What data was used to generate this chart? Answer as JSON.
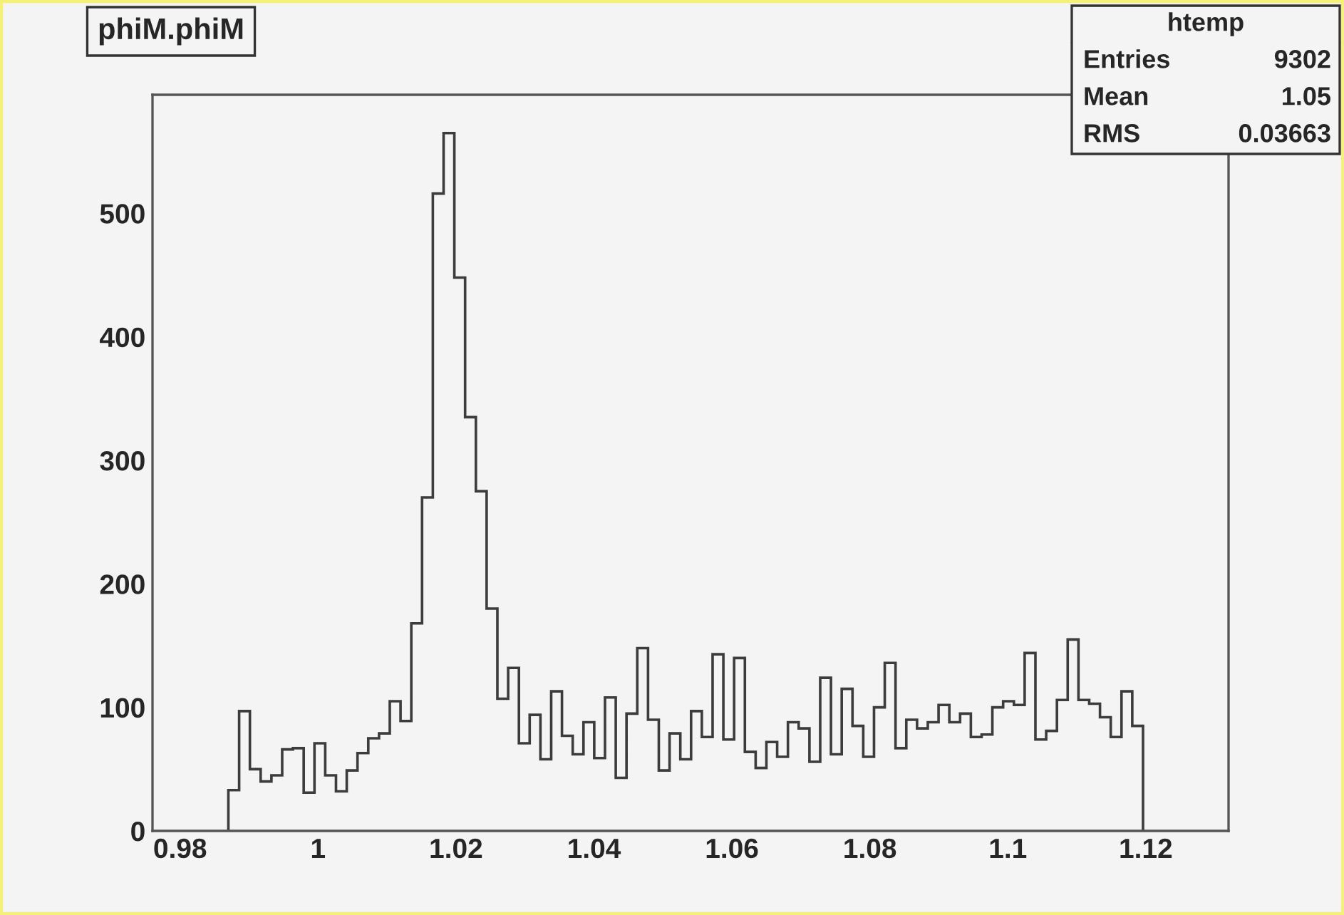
{
  "chart_data": {
    "type": "histogram",
    "title": "phiM.phiM",
    "bins": [
      0.987,
      0.98856,
      0.99012,
      0.99168,
      0.99324,
      0.9948,
      0.99636,
      0.99792,
      0.99948,
      1.00104,
      1.0026,
      1.00416,
      1.00572,
      1.00728,
      1.00884,
      1.0104,
      1.01196,
      1.01352,
      1.01508,
      1.01664,
      1.0182,
      1.01976,
      1.02132,
      1.02288,
      1.02444,
      1.026,
      1.02756,
      1.02912,
      1.03068,
      1.03224,
      1.0338,
      1.03536,
      1.03692,
      1.03848,
      1.04004,
      1.0416,
      1.04316,
      1.04472,
      1.04628,
      1.04784,
      1.0494,
      1.05096,
      1.05252,
      1.05408,
      1.05564,
      1.0572,
      1.05876,
      1.06032,
      1.06188,
      1.06344,
      1.065,
      1.06656,
      1.06812,
      1.06968,
      1.07124,
      1.0728,
      1.07436,
      1.07592,
      1.07748,
      1.07904,
      1.0806,
      1.08216,
      1.08372,
      1.08528,
      1.08684,
      1.0884,
      1.08996,
      1.09152,
      1.09308,
      1.09464,
      1.0962,
      1.09776,
      1.09932,
      1.10088,
      1.10244,
      1.104,
      1.10556,
      1.10712,
      1.10868,
      1.11024,
      1.1118,
      1.11336,
      1.11492,
      1.11648,
      1.11804,
      1.1196
    ],
    "values": [
      33,
      97,
      50,
      40,
      45,
      66,
      67,
      31,
      71,
      45,
      32,
      49,
      63,
      75,
      79,
      105,
      89,
      168,
      270,
      516,
      565,
      448,
      335,
      275,
      180,
      107,
      132,
      71,
      94,
      58,
      113,
      77,
      62,
      88,
      59,
      108,
      43,
      95,
      148,
      90,
      49,
      79,
      58,
      97,
      76,
      143,
      74,
      140,
      64,
      51,
      72,
      60,
      88,
      83,
      56,
      124,
      62,
      115,
      85,
      60,
      100,
      136,
      67,
      90,
      83,
      88,
      102,
      88,
      95,
      76,
      78,
      100,
      105,
      102,
      144,
      74,
      81,
      106,
      155,
      106,
      103,
      92,
      76,
      113,
      85
    ],
    "color": "#3c3c3c",
    "xlim": [
      0.976,
      1.132
    ],
    "xticks": [
      {
        "value": 0.98,
        "label": "0.98"
      },
      {
        "value": 1.0,
        "label": "1"
      },
      {
        "value": 1.02,
        "label": "1.02"
      },
      {
        "value": 1.04,
        "label": "1.04"
      },
      {
        "value": 1.06,
        "label": "1.06"
      },
      {
        "value": 1.08,
        "label": "1.08"
      },
      {
        "value": 1.1,
        "label": "1.1"
      },
      {
        "value": 1.12,
        "label": "1.12"
      }
    ],
    "ylim": [
      0,
      596
    ],
    "yticks": [
      0,
      100,
      200,
      300,
      400,
      500
    ],
    "grid": false,
    "annotations": [
      "htemp",
      "Entries",
      "9302",
      "Mean",
      "1.05",
      "RMS",
      "0.03663"
    ]
  }
}
